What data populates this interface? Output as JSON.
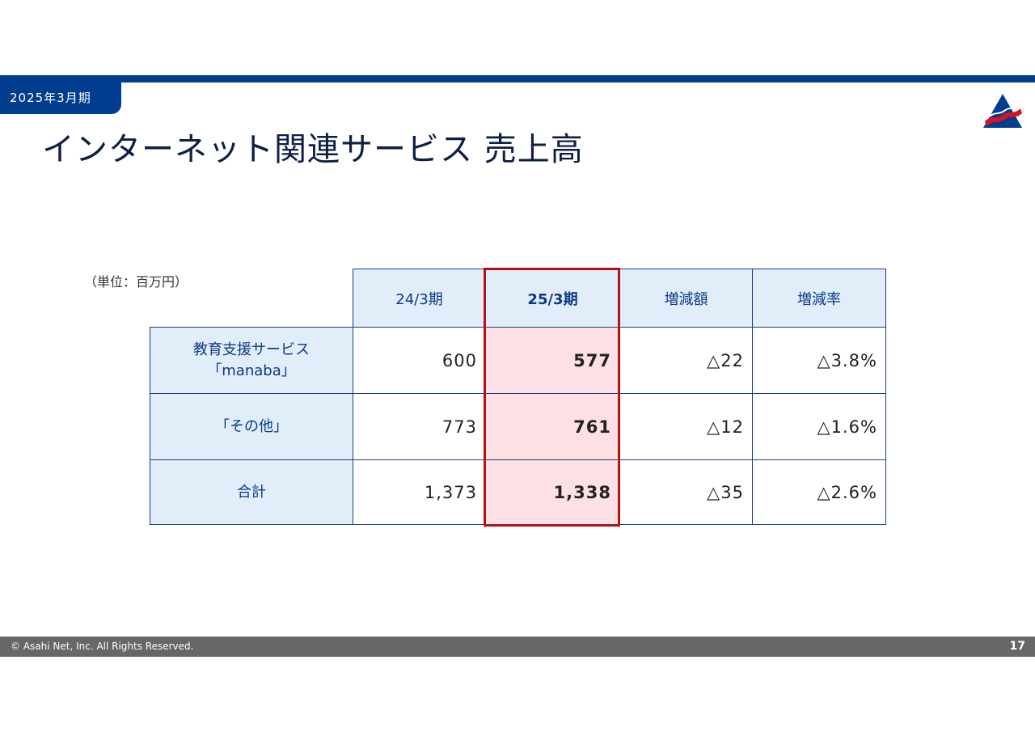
{
  "header": {
    "fiscal_period": "2025年3月期",
    "title": "インターネット関連サービス 売上高",
    "logo_icon": "asahi-net-triangle-logo"
  },
  "table": {
    "unit_label": "（単位：百万円）",
    "columns": [
      "24/3期",
      "25/3期",
      "増減額",
      "増減率"
    ],
    "highlighted_column": "25/3期",
    "rows": [
      {
        "label_line1": "教育支援サービス",
        "label_line2": "「manaba」",
        "values": [
          "600",
          "577",
          "△22",
          "△3.8%"
        ]
      },
      {
        "label_line1": "「その他」",
        "label_line2": "",
        "values": [
          "773",
          "761",
          "△12",
          "△1.6%"
        ]
      },
      {
        "label_line1": "合計",
        "label_line2": "",
        "values": [
          "1,373",
          "1,338",
          "△35",
          "△2.6%"
        ]
      }
    ]
  },
  "footer": {
    "copyright": "© Asahi Net, Inc. All Rights Reserved.",
    "page_number": "17"
  },
  "colors": {
    "brand_blue": "#003d8f",
    "header_cell_bg": "#e1eefa",
    "highlight_bg": "#fde0e3",
    "highlight_border": "#b0111b",
    "footer_bg": "#676767"
  }
}
